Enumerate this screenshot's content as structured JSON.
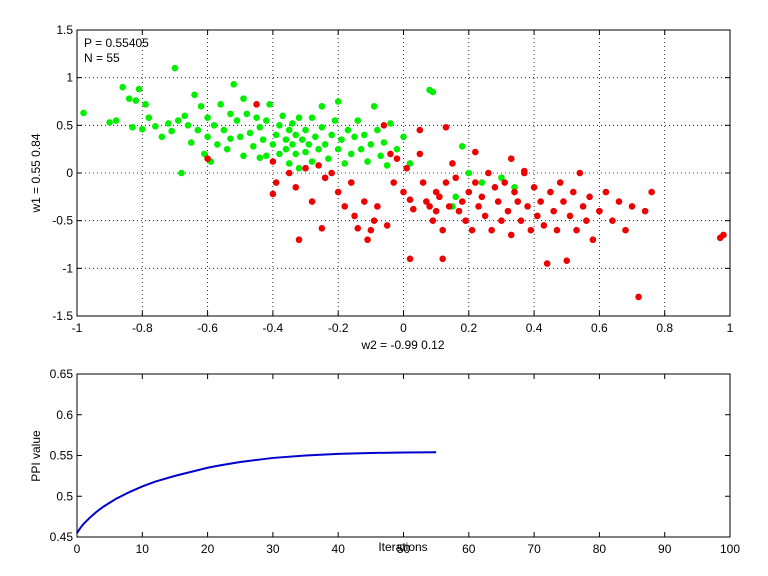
{
  "chart_data": [
    {
      "type": "scatter",
      "xlabel": "w2 = -0.99  0.12",
      "ylabel": "w1 = 0.55  0.84",
      "xlim": [
        -1,
        1
      ],
      "ylim": [
        -1.5,
        1.5
      ],
      "xticks": [
        "-1",
        "-0.8",
        "-0.6",
        "-0.4",
        "-0.2",
        "0",
        "0.2",
        "0.4",
        "0.6",
        "0.8",
        "1"
      ],
      "yticks": [
        "-1.5",
        "-1",
        "-0.5",
        "0",
        "0.5",
        "1",
        "1.5"
      ],
      "grid": true,
      "annotations": [
        "P = 0.55405",
        "N = 55"
      ],
      "colors": {
        "green": "#00ee00",
        "red": "#ee0000"
      },
      "series": [
        {
          "color": "#00ee00",
          "points": [
            [
              -0.98,
              0.63
            ],
            [
              -0.9,
              0.53
            ],
            [
              -0.88,
              0.55
            ],
            [
              -0.86,
              0.9
            ],
            [
              -0.84,
              0.78
            ],
            [
              -0.83,
              0.48
            ],
            [
              -0.82,
              0.76
            ],
            [
              -0.81,
              0.88
            ],
            [
              -0.8,
              0.46
            ],
            [
              -0.79,
              0.72
            ],
            [
              -0.78,
              0.58
            ],
            [
              -0.76,
              0.49
            ],
            [
              -0.74,
              0.38
            ],
            [
              -0.72,
              0.52
            ],
            [
              -0.71,
              0.44
            ],
            [
              -0.7,
              1.1
            ],
            [
              -0.69,
              0.55
            ],
            [
              -0.68,
              0.0
            ],
            [
              -0.67,
              0.6
            ],
            [
              -0.66,
              0.5
            ],
            [
              -0.65,
              0.32
            ],
            [
              -0.64,
              0.82
            ],
            [
              -0.63,
              0.45
            ],
            [
              -0.62,
              0.7
            ],
            [
              -0.61,
              0.2
            ],
            [
              -0.6,
              0.58
            ],
            [
              -0.6,
              0.38
            ],
            [
              -0.59,
              0.12
            ],
            [
              -0.58,
              0.5
            ],
            [
              -0.57,
              0.3
            ],
            [
              -0.56,
              0.72
            ],
            [
              -0.55,
              0.45
            ],
            [
              -0.54,
              0.25
            ],
            [
              -0.53,
              0.62
            ],
            [
              -0.52,
              0.93
            ],
            [
              -0.51,
              0.55
            ],
            [
              -0.5,
              0.38
            ],
            [
              -0.49,
              0.18
            ],
            [
              -0.49,
              0.78
            ],
            [
              -0.48,
              0.62
            ],
            [
              -0.47,
              0.42
            ],
            [
              -0.46,
              0.28
            ],
            [
              -0.45,
              0.58
            ],
            [
              -0.44,
              0.48
            ],
            [
              -0.43,
              0.35
            ],
            [
              -0.42,
              0.55
            ],
            [
              -0.42,
              0.18
            ],
            [
              -0.41,
              0.72
            ],
            [
              -0.4,
              0.3
            ],
            [
              -0.39,
              0.4
            ],
            [
              -0.38,
              0.5
            ],
            [
              -0.38,
              0.2
            ],
            [
              -0.37,
              0.6
            ],
            [
              -0.36,
              0.35
            ],
            [
              -0.36,
              0.25
            ],
            [
              -0.35,
              0.45
            ],
            [
              -0.35,
              0.1
            ],
            [
              -0.34,
              0.52
            ],
            [
              -0.34,
              0.3
            ],
            [
              -0.33,
              0.4
            ],
            [
              -0.33,
              0.2
            ],
            [
              -0.32,
              0.58
            ],
            [
              -0.32,
              0.05
            ],
            [
              -0.31,
              0.35
            ],
            [
              -0.3,
              0.45
            ],
            [
              -0.3,
              0.22
            ],
            [
              -0.29,
              0.3
            ],
            [
              -0.28,
              0.58
            ],
            [
              -0.28,
              0.12
            ],
            [
              -0.27,
              0.38
            ],
            [
              -0.26,
              0.25
            ],
            [
              -0.25,
              0.48
            ],
            [
              -0.25,
              0.7
            ],
            [
              -0.24,
              0.3
            ],
            [
              -0.23,
              0.15
            ],
            [
              -0.22,
              0.4
            ],
            [
              -0.21,
              0.55
            ],
            [
              -0.2,
              0.25
            ],
            [
              -0.2,
              0.75
            ],
            [
              -0.19,
              0.35
            ],
            [
              -0.18,
              0.1
            ],
            [
              -0.17,
              0.45
            ],
            [
              -0.16,
              0.2
            ],
            [
              -0.15,
              0.38
            ],
            [
              -0.14,
              0.55
            ],
            [
              -0.13,
              0.25
            ],
            [
              -0.12,
              0.4
            ],
            [
              -0.11,
              0.12
            ],
            [
              -0.1,
              0.3
            ],
            [
              -0.09,
              0.7
            ],
            [
              -0.08,
              0.45
            ],
            [
              -0.07,
              0.18
            ],
            [
              -0.06,
              0.32
            ],
            [
              -0.05,
              0.08
            ],
            [
              -0.04,
              0.52
            ],
            [
              -0.02,
              0.25
            ],
            [
              0.0,
              0.38
            ],
            [
              0.02,
              0.1
            ],
            [
              0.08,
              0.87
            ],
            [
              0.09,
              0.85
            ],
            [
              0.15,
              -0.35
            ],
            [
              0.16,
              -0.25
            ],
            [
              0.18,
              0.28
            ],
            [
              0.2,
              0.0
            ],
            [
              0.24,
              -0.1
            ],
            [
              0.3,
              -0.05
            ],
            [
              0.34,
              -0.15
            ],
            [
              -0.44,
              0.16
            ],
            [
              -0.53,
              0.36
            ]
          ]
        },
        {
          "color": "#ee0000",
          "points": [
            [
              -0.45,
              0.72
            ],
            [
              -0.6,
              0.15
            ],
            [
              -0.4,
              0.12
            ],
            [
              -0.39,
              -0.1
            ],
            [
              -0.4,
              -0.22
            ],
            [
              -0.35,
              0.0
            ],
            [
              -0.33,
              -0.15
            ],
            [
              -0.32,
              -0.7
            ],
            [
              -0.3,
              0.05
            ],
            [
              -0.28,
              -0.3
            ],
            [
              -0.26,
              0.08
            ],
            [
              -0.24,
              -0.05
            ],
            [
              -0.22,
              0.0
            ],
            [
              -0.2,
              -0.2
            ],
            [
              -0.18,
              -0.35
            ],
            [
              -0.16,
              -0.1
            ],
            [
              -0.15,
              -0.45
            ],
            [
              -0.14,
              -0.58
            ],
            [
              -0.12,
              -0.3
            ],
            [
              -0.11,
              -0.7
            ],
            [
              -0.1,
              -0.6
            ],
            [
              -0.09,
              -0.5
            ],
            [
              -0.08,
              -0.35
            ],
            [
              -0.06,
              0.5
            ],
            [
              -0.05,
              -0.55
            ],
            [
              -0.04,
              0.2
            ],
            [
              -0.03,
              -0.1
            ],
            [
              -0.02,
              0.15
            ],
            [
              0.0,
              -0.2
            ],
            [
              0.01,
              0.05
            ],
            [
              0.02,
              -0.28
            ],
            [
              0.02,
              -0.9
            ],
            [
              0.03,
              -0.38
            ],
            [
              0.05,
              0.2
            ],
            [
              0.06,
              -0.1
            ],
            [
              0.07,
              -0.3
            ],
            [
              0.08,
              -0.35
            ],
            [
              0.09,
              -0.5
            ],
            [
              0.1,
              -0.2
            ],
            [
              0.1,
              -0.4
            ],
            [
              0.11,
              -0.25
            ],
            [
              0.12,
              -0.6
            ],
            [
              0.13,
              -0.1
            ],
            [
              0.14,
              -0.35
            ],
            [
              0.15,
              0.1
            ],
            [
              0.16,
              -0.05
            ],
            [
              0.17,
              -0.4
            ],
            [
              0.18,
              -0.3
            ],
            [
              0.19,
              -0.5
            ],
            [
              0.2,
              -0.2
            ],
            [
              0.21,
              -0.6
            ],
            [
              0.22,
              -0.1
            ],
            [
              0.23,
              -0.35
            ],
            [
              0.24,
              -0.25
            ],
            [
              0.25,
              -0.45
            ],
            [
              0.26,
              0.0
            ],
            [
              0.27,
              -0.6
            ],
            [
              0.28,
              -0.15
            ],
            [
              0.29,
              -0.3
            ],
            [
              0.3,
              -0.5
            ],
            [
              0.31,
              -0.1
            ],
            [
              0.32,
              -0.4
            ],
            [
              0.33,
              -0.65
            ],
            [
              0.34,
              -0.2
            ],
            [
              0.35,
              -0.3
            ],
            [
              0.36,
              -0.5
            ],
            [
              0.37,
              0.0
            ],
            [
              0.38,
              -0.35
            ],
            [
              0.39,
              -0.6
            ],
            [
              0.4,
              -0.15
            ],
            [
              0.41,
              -0.45
            ],
            [
              0.42,
              -0.3
            ],
            [
              0.43,
              -0.55
            ],
            [
              0.44,
              -0.95
            ],
            [
              0.45,
              -0.2
            ],
            [
              0.46,
              -0.4
            ],
            [
              0.47,
              -0.6
            ],
            [
              0.48,
              -0.1
            ],
            [
              0.49,
              -0.3
            ],
            [
              0.5,
              -0.92
            ],
            [
              0.51,
              -0.45
            ],
            [
              0.52,
              -0.2
            ],
            [
              0.53,
              -0.6
            ],
            [
              0.54,
              0.0
            ],
            [
              0.55,
              -0.35
            ],
            [
              0.56,
              -0.5
            ],
            [
              0.57,
              -0.25
            ],
            [
              0.58,
              -0.7
            ],
            [
              0.6,
              -0.4
            ],
            [
              0.62,
              -0.2
            ],
            [
              0.64,
              -0.5
            ],
            [
              0.66,
              -0.3
            ],
            [
              0.68,
              -0.6
            ],
            [
              0.7,
              -0.35
            ],
            [
              0.72,
              -1.3
            ],
            [
              0.74,
              -0.4
            ],
            [
              0.76,
              -0.2
            ],
            [
              0.98,
              -0.65
            ],
            [
              0.97,
              -0.68
            ],
            [
              0.13,
              0.48
            ],
            [
              0.22,
              0.22
            ],
            [
              0.33,
              0.15
            ],
            [
              0.37,
              0.02
            ],
            [
              -0.25,
              -0.58
            ],
            [
              0.12,
              -0.9
            ],
            [
              0.05,
              0.45
            ]
          ]
        }
      ]
    },
    {
      "type": "line",
      "xlabel": "Iterations",
      "ylabel": "PPI value",
      "xlim": [
        0,
        100
      ],
      "ylim": [
        0.45,
        0.65
      ],
      "xticks": [
        "0",
        "10",
        "20",
        "30",
        "40",
        "50",
        "60",
        "70",
        "80",
        "90",
        "100"
      ],
      "yticks": [
        "0.45",
        "0.5",
        "0.55",
        "0.6",
        "0.65"
      ],
      "grid": false,
      "series": [
        {
          "color": "#0000cc",
          "x": [
            0,
            0.5,
            1,
            2,
            3,
            4,
            5,
            6,
            8,
            10,
            12,
            15,
            18,
            20,
            22,
            25,
            28,
            30,
            35,
            40,
            45,
            50,
            55
          ],
          "y": [
            0.455,
            0.461,
            0.466,
            0.474,
            0.481,
            0.487,
            0.492,
            0.497,
            0.505,
            0.512,
            0.518,
            0.525,
            0.531,
            0.535,
            0.538,
            0.542,
            0.545,
            0.547,
            0.55,
            0.552,
            0.5531,
            0.5537,
            0.55405
          ]
        }
      ]
    }
  ]
}
